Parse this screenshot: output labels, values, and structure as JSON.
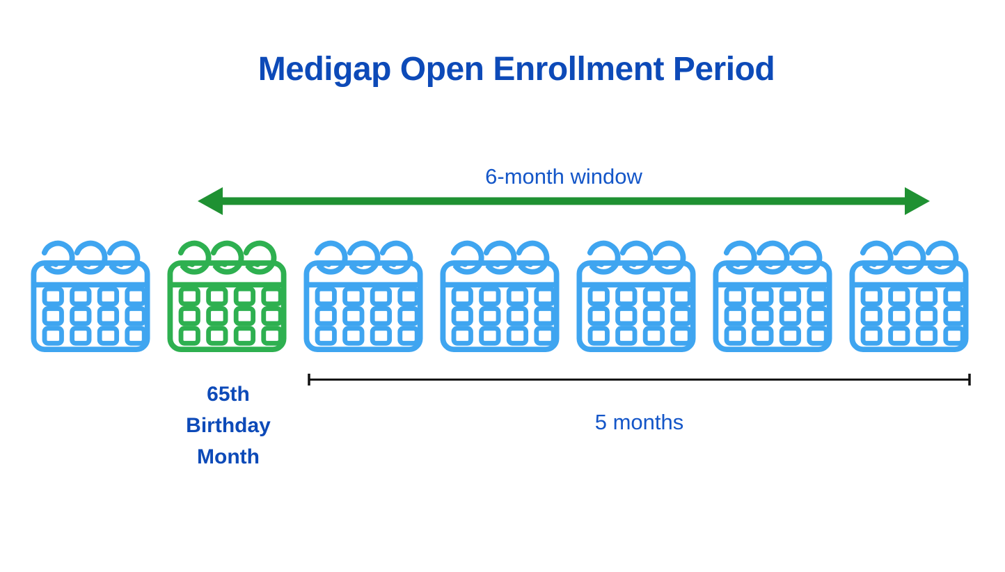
{
  "title": "Medigap Open Enrollment Period",
  "window_arrow": {
    "label": "6-month window"
  },
  "duration_bracket": {
    "label": "5 months"
  },
  "birthday_label": {
    "lines": [
      "65th",
      "Birthday",
      "Month"
    ]
  },
  "calendars": [
    {
      "variant": "blue"
    },
    {
      "variant": "green"
    },
    {
      "variant": "blue"
    },
    {
      "variant": "blue"
    },
    {
      "variant": "blue"
    },
    {
      "variant": "blue"
    },
    {
      "variant": "blue"
    }
  ],
  "colors": {
    "background": "#ffffff",
    "heading_blue": "#0d4ab8",
    "label_blue": "#1456c8",
    "calendar_blue": "#3fa5f0",
    "calendar_green": "#2eb050",
    "arrow_green": "#1f9132",
    "bracket_black": "#111111"
  }
}
